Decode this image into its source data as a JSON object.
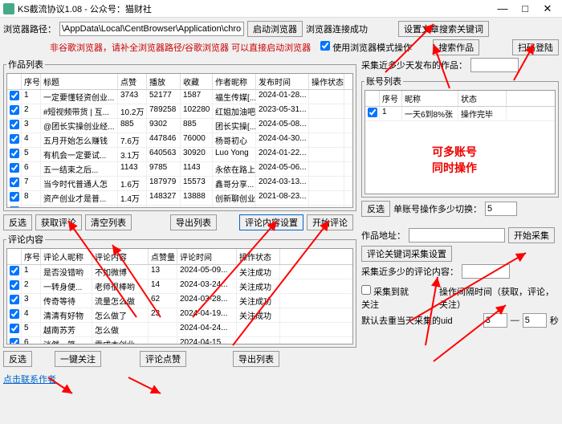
{
  "window": {
    "title": "KS截流协议1.08 - 公众号：猫财社",
    "min": "—",
    "max": "□",
    "close": "✕"
  },
  "top": {
    "pathLabel": "浏览器路径：",
    "pathValue": "\\AppData\\Local\\CentBrowser\\Application\\chrome.exe",
    "launchBtn": "启动浏览器",
    "connStatus": "浏览器连接成功",
    "setKeywordBtn": "设置文章搜索关键词",
    "hint": "非谷歌浏览器，请补全浏览器路径/谷歌浏览器 可以直接启动浏览器",
    "useBrowserMode": "使用浏览器模式操作",
    "searchWorkBtn": "搜索作品",
    "scanLoginBtn": "扫码登陆"
  },
  "workList": {
    "legend": "作品列表",
    "cols": [
      "序号",
      "标题",
      "点赞",
      "播放",
      "收藏",
      "作者昵称",
      "发布时间",
      "操作状态"
    ],
    "rows": [
      [
        "1",
        "一定要懂轻资创业...",
        "3743",
        "52177",
        "1587",
        "福生传媒[...",
        "2024-01-28...",
        ""
      ],
      [
        "2",
        "#短视频带货 | 互...",
        "10.2万",
        "789258",
        "102280",
        "红姐加油吧",
        "2023-05-31...",
        ""
      ],
      [
        "3",
        "@团长实操创业经...",
        "885",
        "9302",
        "885",
        "团长实操[...",
        "2024-05-08...",
        ""
      ],
      [
        "4",
        "五月开始怎么赚钱",
        "7.6万",
        "447846",
        "76000",
        "杨哥初心",
        "2024-04-30...",
        ""
      ],
      [
        "5",
        "有机会一定要试...",
        "3.1万",
        "640563",
        "30920",
        "Luo Yong",
        "2024-01-22...",
        ""
      ],
      [
        "6",
        "五一结束之后...",
        "1143",
        "9785",
        "1143",
        "永依在路上",
        "2024-05-06...",
        ""
      ],
      [
        "7",
        "当今时代普通人怎",
        "1.6万",
        "187979",
        "15573",
        "鑫哥分享...",
        "2024-03-13...",
        ""
      ],
      [
        "8",
        "资产创业才是普...",
        "1.4万",
        "148327",
        "13888",
        "创新聊创业",
        "2021-08-23...",
        ""
      ],
      [
        "9",
        "分享创业知识，你",
        "1.1万",
        "60550",
        "11278",
        "卓越创业说",
        "2024-04-16...",
        ""
      ],
      [
        "10",
        "第95个，手里没本",
        "2.8万",
        "618886",
        "28368",
        "秦九说网",
        "2024-02-26...",
        ""
      ],
      [
        "11",
        "2024年轻资普通人",
        "4.6万",
        "403322",
        "46324",
        "悦儿爱生...",
        "2024-03-17...",
        ""
      ],
      [
        "12",
        "创业不易，手里没",
        "18.6万",
        "306...",
        "186428",
        "张哥传媒",
        "2024-03-25...",
        ""
      ],
      [
        "13",
        "#讲师创业分享 #...",
        "914",
        "9125",
        "914",
        "创业乐哥",
        "2024-03-30...",
        ""
      ],
      [
        "14",
        "4月1日起，这3件...",
        "5.2万",
        "516495",
        "51885",
        "主持人老梅",
        "2022-03-28...",
        ""
      ]
    ]
  },
  "workBtns": {
    "antiSel": "反选",
    "getComment": "获取评论",
    "clearList": "清空列表",
    "exportList": "导出列表",
    "commentSetting": "评论内容设置",
    "startComment": "开始评论"
  },
  "commentContent": {
    "legend": "评论内容",
    "cols": [
      "序号",
      "评论人昵称",
      "评论内容",
      "点赞量",
      "评论时间",
      "操作状态"
    ],
    "rows": [
      [
        "1",
        "是否没错哟",
        "不如微博",
        "13",
        "2024-05-09...",
        "关注成功"
      ],
      [
        "2",
        "一转身便...",
        "老师很棒哟",
        "14",
        "2024-03-24...",
        "关注成功"
      ],
      [
        "3",
        "传奇等待",
        "流量怎么做",
        "62",
        "2024-03-28...",
        "关注成功"
      ],
      [
        "4",
        "清清有好物",
        "怎么做了",
        "23",
        "2024-04-19...",
        "关注成功"
      ],
      [
        "5",
        "越南苏芳",
        "怎么做",
        "",
        "2024-04-24...",
        ""
      ],
      [
        "6",
        "淡然一笑...",
        "零成本创业...",
        "",
        "2024-04-15...",
        ""
      ],
      [
        "7",
        "阿兰轻创业",
        "求带[666]",
        "1",
        "2024-05-03...",
        ""
      ],
      [
        "8",
        "浪漫",
        "怎么做",
        "",
        "2024-05-06...",
        ""
      ]
    ]
  },
  "commentBtns": {
    "antiSel": "反选",
    "oneKeyFollow": "一键关注",
    "clickLike": "评论点赞",
    "exportList": "导出列表"
  },
  "right": {
    "collectDaysLabel": "采集近多少天发布的作品：",
    "collectDaysValue": "",
    "accountList": {
      "legend": "账号列表",
      "cols": [
        "序号",
        "昵称",
        "状态"
      ],
      "rows": [
        [
          "1",
          "一天6到8%张",
          "操作完毕"
        ]
      ]
    },
    "multiAccountText1": "可多账号",
    "multiAccountText2": "同时操作",
    "antiSel": "反选",
    "accountIntervalLabel": "单账号操作多少切换：",
    "accountIntervalValue": "5",
    "workAddrLabel": "作品地址：",
    "workAddrValue": "",
    "startCollectBtn": "开始采集",
    "commentKeywordBtn": "评论关键词采集设置",
    "collectCommentLabel": "采集近多少的评论内容：",
    "collectCommentValue": "",
    "collectToFollow": "采集到就关注",
    "intervalLabel": "操作间隔时间（获取，评论，关注）",
    "intervalFrom": "3",
    "intervalDash": "—",
    "intervalTo": "5",
    "intervalSec": "秒",
    "defaultAuthorLabel": "默认去重当天采集的uid"
  },
  "footer": {
    "contact": "点击联系作者"
  },
  "colors": {
    "red": "#e00000",
    "arrow": "#ff0000",
    "selrow": "#cce4f7"
  }
}
